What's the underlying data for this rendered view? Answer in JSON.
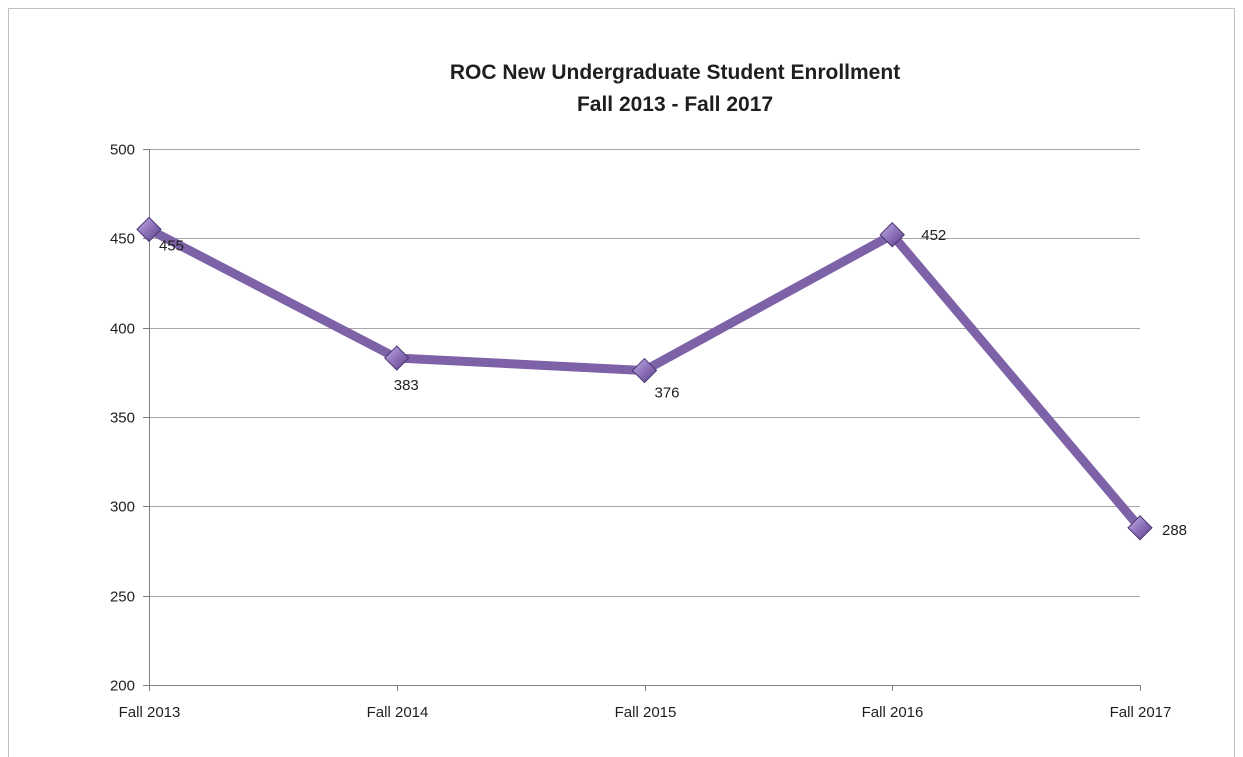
{
  "chart_data": {
    "type": "line",
    "title": "ROC New Undergraduate Student Enrollment",
    "subtitle": "Fall 2013 - Fall 2017",
    "xlabel": "",
    "ylabel": "",
    "categories": [
      "Fall 2013",
      "Fall 2014",
      "Fall 2015",
      "Fall 2016",
      "Fall 2017"
    ],
    "series": [
      {
        "values": [
          455,
          383,
          376,
          452,
          288
        ],
        "color": "#7d62a8",
        "marker": "diamond"
      }
    ],
    "ylim": [
      200,
      500
    ],
    "yticks": [
      200,
      250,
      300,
      350,
      400,
      450,
      500
    ],
    "ytick_labels": [
      "200",
      "250",
      "300",
      "350",
      "400",
      "450",
      "500"
    ],
    "grid": true,
    "legend": "none",
    "data_labels": [
      "455",
      "383",
      "376",
      "452",
      "288"
    ]
  }
}
